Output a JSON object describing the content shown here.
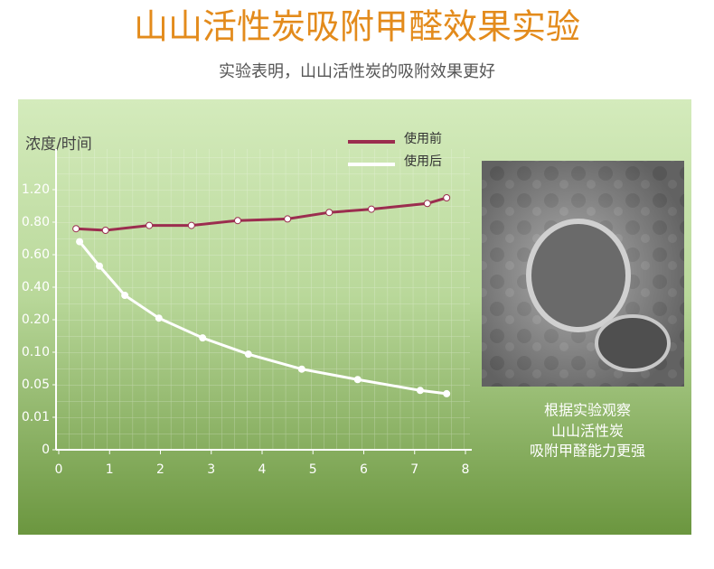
{
  "chart_data": {
    "type": "line",
    "title": "山山活性炭吸附甲醛效果实验",
    "subtitle": "实验表明，山山活性炭的吸附效果更好",
    "y_label": "浓度/时间",
    "xlim": [
      0,
      8
    ],
    "xticks": [
      0,
      1,
      2,
      3,
      4,
      5,
      6,
      7,
      8
    ],
    "ylim": [
      0,
      1.2
    ],
    "yticks": [
      0,
      0.01,
      0.05,
      {
        "value": 0.1,
        "label": "0.10"
      },
      {
        "value": 0.2,
        "label": "0.20"
      },
      {
        "value": 0.4,
        "label": "0.40"
      },
      {
        "value": 0.6,
        "label": "0.60"
      },
      {
        "value": 0.8,
        "label": "0.80"
      },
      {
        "value": 1.2,
        "label": "1.20"
      }
    ],
    "grid": true,
    "series": [
      {
        "name": "使用前",
        "color": "#9b2d4f",
        "x": [
          0.34,
          0.92,
          1.78,
          2.61,
          3.52,
          4.5,
          5.32,
          6.15,
          7.25,
          7.63
        ],
        "values": [
          0.76,
          0.75,
          0.78,
          0.78,
          0.82,
          0.84,
          0.92,
          0.96,
          1.03,
          1.1
        ]
      },
      {
        "name": "使用后",
        "color": "#ffffff",
        "x": [
          0.41,
          0.8,
          1.3,
          1.97,
          2.83,
          3.73,
          4.78,
          5.88,
          7.11,
          7.63
        ],
        "values": [
          0.68,
          0.53,
          0.35,
          0.21,
          0.144,
          0.097,
          0.074,
          0.058,
          0.043,
          0.039
        ]
      }
    ]
  },
  "caption": [
    "根据实验观察",
    "山山活性炭",
    "吸附甲醛能力更强"
  ]
}
